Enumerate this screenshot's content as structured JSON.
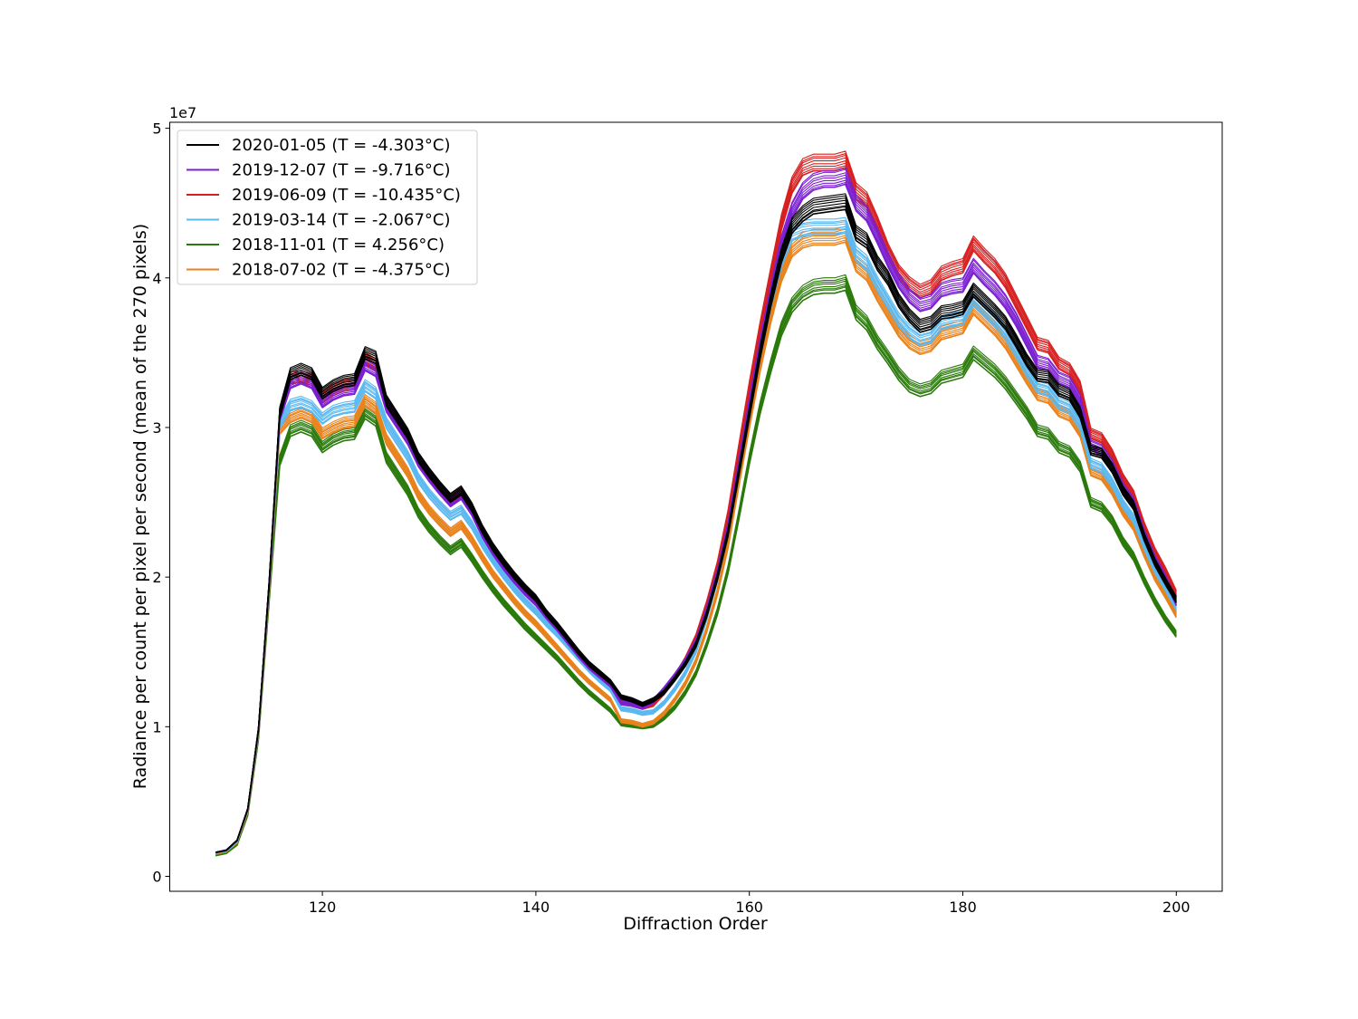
{
  "chart_data": {
    "type": "line",
    "title": "",
    "xlabel": "Diffraction Order",
    "ylabel": "Radiance per count per pixel per second (mean of the 270 pixels)",
    "y_scale_label": "1e7",
    "xlim": [
      105.7,
      204.3
    ],
    "ylim": [
      -1000000,
      50400000
    ],
    "x_ticks": [
      120,
      140,
      160,
      180,
      200
    ],
    "y_ticks": [
      0,
      10000000,
      20000000,
      30000000,
      40000000,
      50000000
    ],
    "y_tick_labels": [
      "0",
      "1",
      "2",
      "3",
      "4",
      "5"
    ],
    "grid": false,
    "legend_position": "top-left",
    "x": [
      110,
      111,
      112,
      113,
      114,
      115,
      116,
      117,
      118,
      119,
      120,
      121,
      122,
      123,
      124,
      125,
      126,
      127,
      128,
      129,
      130,
      131,
      132,
      133,
      134,
      135,
      136,
      137,
      138,
      139,
      140,
      141,
      142,
      143,
      144,
      145,
      146,
      147,
      148,
      149,
      150,
      151,
      152,
      153,
      154,
      155,
      156,
      157,
      158,
      159,
      160,
      161,
      162,
      163,
      164,
      165,
      166,
      167,
      168,
      169,
      170,
      171,
      172,
      173,
      174,
      175,
      176,
      177,
      178,
      179,
      180,
      181,
      182,
      183,
      184,
      185,
      186,
      187,
      188,
      189,
      190,
      191,
      192,
      193,
      194,
      195,
      196,
      197,
      198,
      199,
      200
    ],
    "series": [
      {
        "name": "2020-01-05 (T = -4.303°C)",
        "color": "#000000",
        "values": [
          1600000,
          1750000,
          2400000,
          4500000,
          9800000,
          19500000,
          31000000,
          33600000,
          33900000,
          33600000,
          32300000,
          32800000,
          33100000,
          33200000,
          35000000,
          34700000,
          31800000,
          30700000,
          29600000,
          28000000,
          27000000,
          26100000,
          25300000,
          25800000,
          24700000,
          23200000,
          22000000,
          21000000,
          20100000,
          19300000,
          18600000,
          17600000,
          16800000,
          15900000,
          15000000,
          14200000,
          13600000,
          13000000,
          12000000,
          11800000,
          11500000,
          11800000,
          12300000,
          13200000,
          14200000,
          15500000,
          17500000,
          20000000,
          23000000,
          27000000,
          31000000,
          35000000,
          38500000,
          41500000,
          43500000,
          44300000,
          44800000,
          44900000,
          45000000,
          45100000,
          43000000,
          42500000,
          41000000,
          40000000,
          38500000,
          37500000,
          36800000,
          37000000,
          37700000,
          37800000,
          38000000,
          39200000,
          38500000,
          37800000,
          37000000,
          35800000,
          34500000,
          33500000,
          33400000,
          32500000,
          32200000,
          31000000,
          28500000,
          28300000,
          27300000,
          25800000,
          24800000,
          22700000,
          21000000,
          19700000,
          18500000
        ]
      },
      {
        "name": "2019-12-07 (T = -9.716°C)",
        "color": "#7b1fd1",
        "values": [
          1600000,
          1750000,
          2400000,
          4500000,
          9800000,
          19500000,
          30800000,
          33000000,
          33300000,
          33000000,
          31700000,
          32200000,
          32500000,
          32600000,
          34200000,
          33800000,
          31400000,
          30300000,
          29200000,
          27700000,
          26700000,
          25800000,
          25000000,
          25500000,
          24400000,
          22900000,
          21700000,
          20700000,
          19800000,
          19000000,
          18300000,
          17400000,
          16600000,
          15700000,
          14800000,
          14000000,
          13400000,
          12800000,
          11600000,
          11500000,
          11300000,
          11700000,
          12500000,
          13400000,
          14400000,
          15700000,
          17800000,
          20300000,
          23400000,
          27500000,
          31600000,
          35500000,
          39000000,
          42300000,
          44500000,
          45800000,
          46400000,
          46600000,
          46600000,
          46800000,
          45000000,
          44300000,
          42800000,
          41200000,
          39800000,
          38800000,
          38200000,
          38400000,
          39200000,
          39400000,
          39500000,
          40800000,
          40000000,
          39300000,
          38400000,
          37200000,
          35800000,
          34400000,
          34200000,
          33300000,
          33000000,
          31800000,
          28800000,
          28500000,
          27500000,
          26000000,
          25000000,
          22900000,
          21200000,
          19900000,
          18300000
        ]
      },
      {
        "name": "2019-06-09 (T = -10.435°C)",
        "color": "#d62020",
        "values": [
          1600000,
          1750000,
          2400000,
          4500000,
          9800000,
          19500000,
          30900000,
          33300000,
          33400000,
          33200000,
          32000000,
          32500000,
          32800000,
          32900000,
          34600000,
          34200000,
          31500000,
          30400000,
          29300000,
          27800000,
          26800000,
          25900000,
          25100000,
          25600000,
          24500000,
          23000000,
          21800000,
          20800000,
          19900000,
          19100000,
          18400000,
          17500000,
          16700000,
          15800000,
          14900000,
          14100000,
          13500000,
          12900000,
          11700000,
          11500000,
          11300000,
          11500000,
          12300000,
          13300000,
          14500000,
          16000000,
          18200000,
          20800000,
          24200000,
          28500000,
          32700000,
          36600000,
          40200000,
          43700000,
          46200000,
          47400000,
          47700000,
          47700000,
          47700000,
          47900000,
          45800000,
          45200000,
          43600000,
          41800000,
          40400000,
          39600000,
          39100000,
          39400000,
          40300000,
          40600000,
          40800000,
          42300000,
          41500000,
          40800000,
          39800000,
          38400000,
          37000000,
          35600000,
          35400000,
          34300000,
          33900000,
          32700000,
          29600000,
          29300000,
          28200000,
          26600000,
          25500000,
          23400000,
          21700000,
          20400000,
          18900000
        ]
      },
      {
        "name": "2019-03-14 (T = -2.067°C)",
        "color": "#5bb8f0",
        "values": [
          1550000,
          1700000,
          2300000,
          4400000,
          9600000,
          19200000,
          30300000,
          31500000,
          31700000,
          31400000,
          30600000,
          31100000,
          31300000,
          31400000,
          32800000,
          32300000,
          30300000,
          29200000,
          28100000,
          26600000,
          25600000,
          24800000,
          24100000,
          24500000,
          23500000,
          22200000,
          21100000,
          20100000,
          19200000,
          18400000,
          17700000,
          16900000,
          16200000,
          15400000,
          14600000,
          13800000,
          13100000,
          12500000,
          11200000,
          11100000,
          10900000,
          11000000,
          11600000,
          12500000,
          13600000,
          15100000,
          17300000,
          19900000,
          23100000,
          27200000,
          31300000,
          35100000,
          38400000,
          41200000,
          43000000,
          43300000,
          43400000,
          43400000,
          43400000,
          43500000,
          41600000,
          41000000,
          39600000,
          38400000,
          37200000,
          36400000,
          35900000,
          36100000,
          37000000,
          37200000,
          37300000,
          38600000,
          37900000,
          37200000,
          36300000,
          35100000,
          33800000,
          32700000,
          32500000,
          31600000,
          31300000,
          30200000,
          27600000,
          27300000,
          26300000,
          24900000,
          23900000,
          22100000,
          20500000,
          19300000,
          18000000
        ]
      },
      {
        "name": "2018-11-01 (T = 4.256°C)",
        "color": "#2a7a0b",
        "values": [
          1400000,
          1550000,
          2100000,
          4100000,
          9200000,
          18500000,
          27800000,
          29800000,
          30100000,
          29800000,
          28700000,
          29200000,
          29500000,
          29600000,
          31000000,
          30500000,
          28000000,
          26900000,
          25800000,
          24300000,
          23300000,
          22500000,
          21800000,
          22300000,
          21300000,
          20200000,
          19200000,
          18300000,
          17500000,
          16700000,
          16000000,
          15300000,
          14600000,
          13800000,
          13000000,
          12300000,
          11700000,
          11100000,
          10200000,
          10100000,
          10000000,
          10100000,
          10600000,
          11300000,
          12300000,
          13600000,
          15500000,
          17700000,
          20500000,
          24100000,
          27900000,
          31300000,
          34100000,
          36600000,
          38200000,
          39000000,
          39400000,
          39500000,
          39500000,
          39700000,
          37700000,
          37000000,
          35700000,
          34700000,
          33600000,
          32800000,
          32500000,
          32700000,
          33400000,
          33600000,
          33800000,
          35000000,
          34400000,
          33800000,
          33000000,
          32000000,
          31000000,
          29800000,
          29600000,
          28700000,
          28400000,
          27400000,
          25000000,
          24700000,
          23800000,
          22400000,
          21400000,
          19800000,
          18400000,
          17200000,
          16200000
        ]
      },
      {
        "name": "2018-07-02 (T = -4.375°C)",
        "color": "#e8821c",
        "values": [
          1500000,
          1650000,
          2250000,
          4300000,
          9500000,
          19000000,
          29900000,
          30700000,
          31000000,
          30700000,
          29600000,
          30000000,
          30300000,
          30400000,
          31800000,
          31300000,
          29200000,
          28100000,
          27000000,
          25500000,
          24500000,
          23700000,
          23000000,
          23500000,
          22500000,
          21300000,
          20200000,
          19300000,
          18400000,
          17600000,
          16900000,
          16100000,
          15300000,
          14500000,
          13700000,
          13000000,
          12400000,
          11800000,
          10400000,
          10300000,
          10100000,
          10300000,
          10900000,
          11800000,
          12900000,
          14400000,
          16500000,
          19000000,
          22200000,
          26300000,
          30300000,
          34100000,
          37400000,
          40200000,
          41900000,
          42500000,
          42700000,
          42700000,
          42700000,
          42900000,
          40900000,
          40300000,
          38900000,
          37700000,
          36500000,
          35700000,
          35300000,
          35500000,
          36300000,
          36500000,
          36700000,
          38000000,
          37300000,
          36600000,
          35700000,
          34500000,
          33300000,
          32200000,
          32000000,
          31100000,
          30800000,
          29700000,
          27100000,
          26800000,
          25800000,
          24400000,
          23400000,
          21600000,
          20000000,
          18800000,
          17500000
        ]
      }
    ],
    "annotations": []
  }
}
